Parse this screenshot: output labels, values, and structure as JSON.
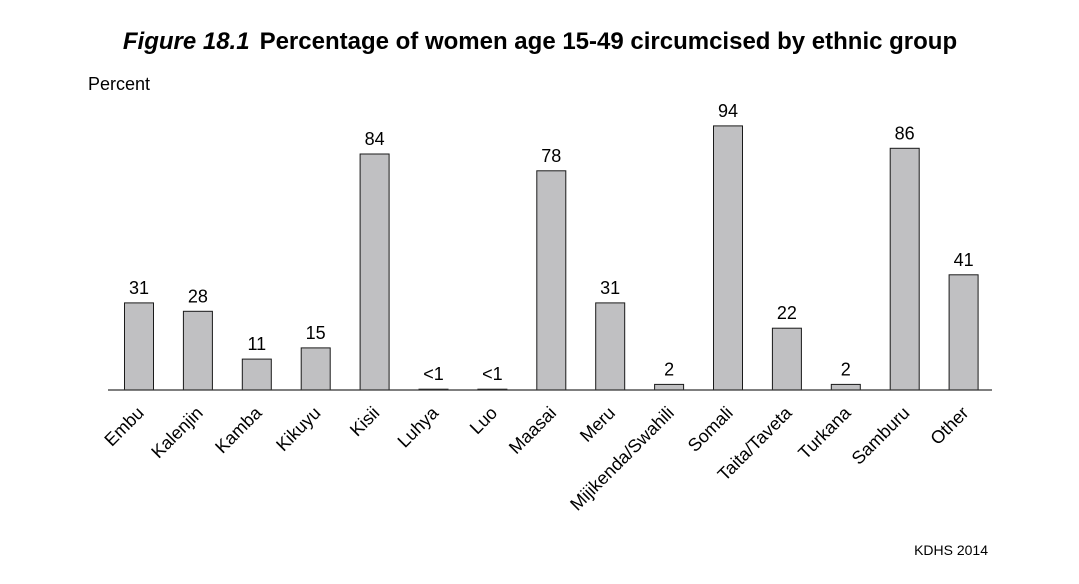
{
  "chart_data": {
    "type": "bar",
    "figure_number": "Figure 18.1",
    "title": "Percentage of women age 15-49 circumcised by ethnic group",
    "ylabel": "Percent",
    "xlabel": "",
    "ylim": [
      0,
      100
    ],
    "grid": false,
    "categories": [
      "Embu",
      "Kalenjin",
      "Kamba",
      "Kikuyu",
      "Kisii",
      "Luhya",
      "Luo",
      "Maasai",
      "Meru",
      "Mijikenda/Swahili",
      "Somali",
      "Taita/Taveta",
      "Turkana",
      "Samburu",
      "Other"
    ],
    "values": [
      31,
      28,
      11,
      15,
      84,
      0.3,
      0.3,
      78,
      31,
      2,
      94,
      22,
      2,
      86,
      41
    ],
    "value_labels": [
      "31",
      "28",
      "11",
      "15",
      "84",
      "<1",
      "<1",
      "78",
      "31",
      "2",
      "94",
      "22",
      "2",
      "86",
      "41"
    ],
    "source": "KDHS 2014",
    "colors": {
      "bar": "#c0c0c2",
      "bar_edge": "#1a1a1a"
    }
  }
}
